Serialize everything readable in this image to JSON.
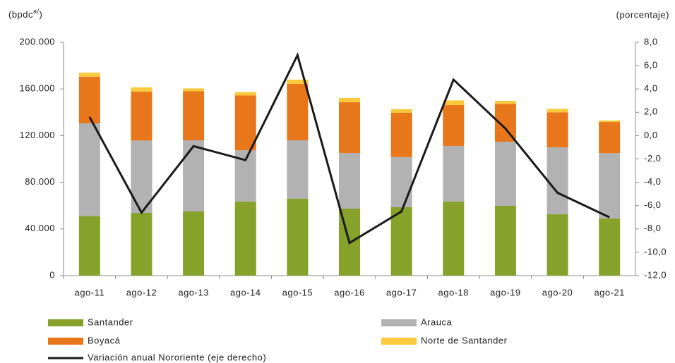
{
  "chart_data": {
    "type": "bar",
    "stacked": true,
    "ylabel": [
      "(bpdc",
      "a/",
      ")"
    ],
    "y2label": "(porcentaje)",
    "categories": [
      "ago-11",
      "ago-12",
      "ago-13",
      "ago-14",
      "ago-15",
      "ago-16",
      "ago-17",
      "ago-18",
      "ago-19",
      "ago-20",
      "ago-21"
    ],
    "series": [
      {
        "name": "Santander",
        "color": "#86a22a",
        "values": [
          51000,
          53800,
          55000,
          63400,
          66000,
          57400,
          58600,
          63400,
          59800,
          52600,
          49000
        ]
      },
      {
        "name": "Arauca",
        "color": "#b2b2b2",
        "values": [
          79500,
          62000,
          61000,
          44000,
          50000,
          47700,
          43000,
          47800,
          55000,
          57400,
          56000
        ]
      },
      {
        "name": "Boyacá",
        "color": "#e8761a",
        "values": [
          40000,
          42000,
          42000,
          47000,
          48500,
          43500,
          38000,
          35000,
          32500,
          30000,
          26700
        ]
      },
      {
        "name": "Norte de Santander",
        "color": "#fbc93d",
        "values": [
          3500,
          3500,
          2500,
          3000,
          3500,
          3700,
          3000,
          4000,
          2500,
          3000,
          1300
        ]
      },
      {
        "name": "Variación anual Nororiente (eje derecho)",
        "type": "line",
        "axis": "y2",
        "color": "#1a1a1a",
        "values": [
          1.6,
          -6.6,
          -0.9,
          -2.1,
          6.9,
          -9.2,
          -6.5,
          4.8,
          0.6,
          -4.9,
          -7.0
        ]
      }
    ],
    "ylim": [
      0,
      200000
    ],
    "yticks": [
      0,
      {
        "value": 40000,
        "label": "40.000"
      },
      {
        "value": 80000,
        "label": "80.000"
      },
      {
        "value": 120000,
        "label": "120.000"
      },
      {
        "value": 160000,
        "label": "160.000"
      },
      {
        "value": 200000,
        "label": "200.000"
      }
    ],
    "y2lim": [
      -12,
      8
    ],
    "y2ticks": [
      {
        "value": -12,
        "label": "-12,0"
      },
      {
        "value": -10,
        "label": "-10,0"
      },
      {
        "value": -8,
        "label": "-8,0"
      },
      {
        "value": -6,
        "label": "-6,0"
      },
      {
        "value": -4,
        "label": "-4,0"
      },
      {
        "value": -2,
        "label": "-2,0"
      },
      {
        "value": 0,
        "label": "0,0"
      },
      {
        "value": 2,
        "label": "2,0"
      },
      {
        "value": 4,
        "label": "4,0"
      },
      {
        "value": 6,
        "label": "6,0"
      },
      {
        "value": 8,
        "label": "8,0"
      }
    ],
    "grid": false
  }
}
